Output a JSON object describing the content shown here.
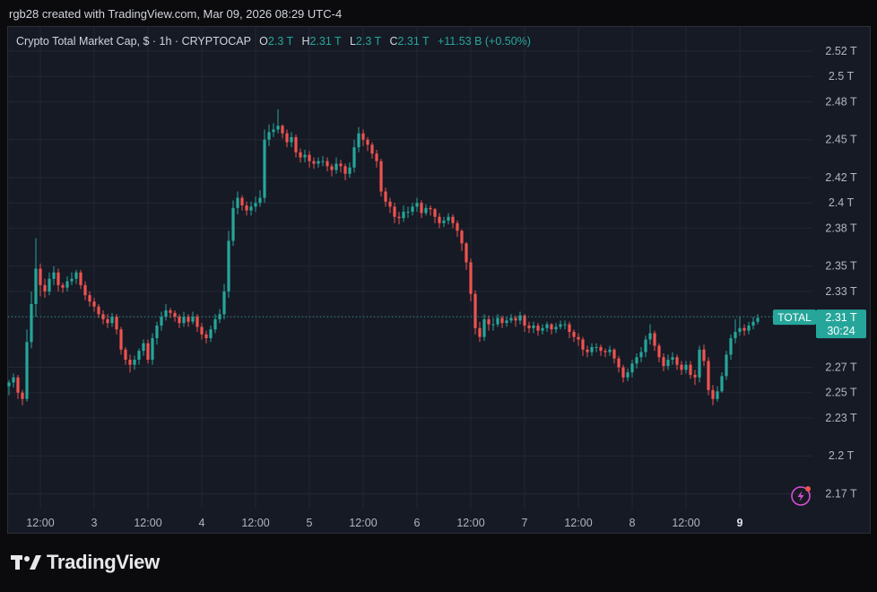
{
  "header": {
    "text": "rgb28 created with TradingView.com, Mar 09, 2026 08:29 UTC-4"
  },
  "legend": {
    "symbol": "Crypto Total Market Cap, $ · 1h · CRYPTOCAP",
    "o_label": "O",
    "o_value": "2.3 T",
    "h_label": "H",
    "h_value": "2.31 T",
    "l_label": "L",
    "l_value": "2.3 T",
    "c_label": "C",
    "c_value": "2.31 T",
    "change": "+11.53 B (+0.50%)"
  },
  "price_tag": {
    "symbol": "TOTAL",
    "price": "2.31 T",
    "countdown": "30:24"
  },
  "colors": {
    "up": "#26a69a",
    "down": "#ef5350",
    "background": "#161a25",
    "grid": "#232735",
    "text": "#b2b5be",
    "lightning": "#d64fd0"
  },
  "icons": {
    "lightning": "lightning-icon",
    "logo": "tradingview-logo-icon"
  },
  "footer": {
    "brand": "TradingView"
  },
  "chart_data": {
    "type": "candlestick",
    "title": "Crypto Total Market Cap, $ · 1h · CRYPTOCAP",
    "y_unit": "T (trillion USD)",
    "ylim": [
      2.155,
      2.535
    ],
    "y_ticks": [
      2.52,
      2.5,
      2.48,
      2.45,
      2.42,
      2.4,
      2.38,
      2.35,
      2.33,
      2.31,
      2.27,
      2.25,
      2.23,
      2.2,
      2.17
    ],
    "y_tick_labels": [
      "2.52 T",
      "2.5 T",
      "2.48 T",
      "2.45 T",
      "2.42 T",
      "2.4 T",
      "2.38 T",
      "2.35 T",
      "2.33 T",
      "2.31 T",
      "2.27 T",
      "2.25 T",
      "2.23 T",
      "2.2 T",
      "2.17 T"
    ],
    "x_ticks": [
      "12:00",
      "3",
      "12:00",
      "4",
      "12:00",
      "5",
      "12:00",
      "6",
      "12:00",
      "7",
      "12:00",
      "8",
      "12:00",
      "9"
    ],
    "x_tick_index": [
      7,
      19,
      31,
      43,
      55,
      67,
      79,
      91,
      103,
      115,
      127,
      139,
      151,
      163
    ],
    "bold_x_ticks": [
      "9"
    ],
    "current_price": 2.31,
    "grid": true,
    "close": [
      2.258,
      2.262,
      2.25,
      2.245,
      2.29,
      2.32,
      2.348,
      2.335,
      2.33,
      2.34,
      2.345,
      2.335,
      2.333,
      2.338,
      2.34,
      2.345,
      2.335,
      2.327,
      2.322,
      2.318,
      2.312,
      2.308,
      2.305,
      2.31,
      2.3,
      2.284,
      2.276,
      2.272,
      2.276,
      2.283,
      2.289,
      2.276,
      2.293,
      2.303,
      2.31,
      2.315,
      2.313,
      2.31,
      2.305,
      2.31,
      2.306,
      2.31,
      2.302,
      2.296,
      2.293,
      2.3,
      2.308,
      2.312,
      2.33,
      2.37,
      2.396,
      2.404,
      2.398,
      2.394,
      2.397,
      2.4,
      2.404,
      2.45,
      2.456,
      2.458,
      2.461,
      2.455,
      2.448,
      2.452,
      2.44,
      2.436,
      2.438,
      2.433,
      2.431,
      2.433,
      2.433,
      2.429,
      2.426,
      2.431,
      2.429,
      2.423,
      2.428,
      2.444,
      2.455,
      2.45,
      2.446,
      2.439,
      2.433,
      2.409,
      2.401,
      2.397,
      2.389,
      2.388,
      2.393,
      2.393,
      2.397,
      2.4,
      2.392,
      2.396,
      2.395,
      2.389,
      2.384,
      2.386,
      2.389,
      2.384,
      2.378,
      2.368,
      2.353,
      2.328,
      2.301,
      2.294,
      2.308,
      2.304,
      2.304,
      2.309,
      2.305,
      2.307,
      2.309,
      2.307,
      2.311,
      2.303,
      2.301,
      2.303,
      2.299,
      2.301,
      2.304,
      2.3,
      2.302,
      2.304,
      2.304,
      2.298,
      2.294,
      2.292,
      2.284,
      2.282,
      2.286,
      2.286,
      2.283,
      2.282,
      2.284,
      2.277,
      2.27,
      2.262,
      2.266,
      2.273,
      2.278,
      2.282,
      2.292,
      2.297,
      2.287,
      2.278,
      2.271,
      2.276,
      2.278,
      2.272,
      2.268,
      2.272,
      2.264,
      2.262,
      2.284,
      2.275,
      2.252,
      2.245,
      2.251,
      2.263,
      2.28,
      2.293,
      2.298,
      2.301,
      2.299,
      2.303,
      2.306,
      2.309
    ],
    "open": [
      2.255,
      2.258,
      2.262,
      2.25,
      2.245,
      2.29,
      2.32,
      2.348,
      2.335,
      2.33,
      2.34,
      2.345,
      2.335,
      2.333,
      2.338,
      2.34,
      2.345,
      2.335,
      2.327,
      2.322,
      2.318,
      2.312,
      2.308,
      2.305,
      2.31,
      2.3,
      2.284,
      2.276,
      2.272,
      2.276,
      2.283,
      2.289,
      2.276,
      2.293,
      2.303,
      2.31,
      2.315,
      2.313,
      2.31,
      2.305,
      2.31,
      2.306,
      2.31,
      2.302,
      2.296,
      2.293,
      2.3,
      2.308,
      2.312,
      2.33,
      2.37,
      2.396,
      2.404,
      2.398,
      2.394,
      2.397,
      2.4,
      2.404,
      2.45,
      2.456,
      2.458,
      2.461,
      2.455,
      2.448,
      2.452,
      2.44,
      2.436,
      2.438,
      2.433,
      2.431,
      2.433,
      2.433,
      2.429,
      2.426,
      2.431,
      2.429,
      2.423,
      2.428,
      2.444,
      2.455,
      2.45,
      2.446,
      2.439,
      2.433,
      2.409,
      2.401,
      2.397,
      2.389,
      2.388,
      2.393,
      2.393,
      2.397,
      2.4,
      2.392,
      2.396,
      2.395,
      2.389,
      2.384,
      2.386,
      2.389,
      2.384,
      2.378,
      2.368,
      2.353,
      2.328,
      2.301,
      2.294,
      2.308,
      2.304,
      2.304,
      2.309,
      2.305,
      2.307,
      2.309,
      2.307,
      2.311,
      2.303,
      2.301,
      2.303,
      2.299,
      2.301,
      2.304,
      2.3,
      2.302,
      2.304,
      2.304,
      2.298,
      2.294,
      2.292,
      2.284,
      2.282,
      2.286,
      2.286,
      2.283,
      2.282,
      2.284,
      2.277,
      2.27,
      2.262,
      2.266,
      2.273,
      2.278,
      2.282,
      2.292,
      2.297,
      2.287,
      2.278,
      2.271,
      2.276,
      2.278,
      2.272,
      2.268,
      2.272,
      2.264,
      2.262,
      2.284,
      2.275,
      2.252,
      2.245,
      2.251,
      2.263,
      2.28,
      2.293,
      2.298,
      2.301,
      2.299,
      2.303,
      2.306
    ],
    "high": [
      2.26,
      2.265,
      2.264,
      2.252,
      2.3,
      2.33,
      2.372,
      2.352,
      2.34,
      2.345,
      2.35,
      2.348,
      2.337,
      2.342,
      2.345,
      2.347,
      2.347,
      2.338,
      2.33,
      2.325,
      2.32,
      2.315,
      2.312,
      2.313,
      2.312,
      2.302,
      2.286,
      2.28,
      2.279,
      2.285,
      2.292,
      2.292,
      2.297,
      2.306,
      2.314,
      2.32,
      2.317,
      2.315,
      2.312,
      2.314,
      2.312,
      2.314,
      2.312,
      2.305,
      2.299,
      2.303,
      2.312,
      2.316,
      2.336,
      2.378,
      2.402,
      2.409,
      2.406,
      2.401,
      2.401,
      2.405,
      2.41,
      2.458,
      2.462,
      2.463,
      2.474,
      2.462,
      2.458,
      2.456,
      2.454,
      2.443,
      2.442,
      2.441,
      2.436,
      2.436,
      2.437,
      2.436,
      2.431,
      2.436,
      2.434,
      2.431,
      2.432,
      2.45,
      2.46,
      2.458,
      2.452,
      2.448,
      2.442,
      2.435,
      2.412,
      2.404,
      2.4,
      2.393,
      2.398,
      2.397,
      2.4,
      2.404,
      2.402,
      2.399,
      2.398,
      2.396,
      2.392,
      2.389,
      2.392,
      2.391,
      2.386,
      2.379,
      2.369,
      2.356,
      2.331,
      2.306,
      2.312,
      2.311,
      2.309,
      2.312,
      2.311,
      2.31,
      2.312,
      2.311,
      2.314,
      2.312,
      2.306,
      2.306,
      2.305,
      2.304,
      2.306,
      2.305,
      2.305,
      2.307,
      2.307,
      2.306,
      2.3,
      2.297,
      2.294,
      2.287,
      2.289,
      2.289,
      2.288,
      2.285,
      2.287,
      2.285,
      2.279,
      2.272,
      2.269,
      2.276,
      2.281,
      2.286,
      2.295,
      2.304,
      2.299,
      2.289,
      2.281,
      2.28,
      2.282,
      2.28,
      2.275,
      2.275,
      2.275,
      2.268,
      2.287,
      2.288,
      2.278,
      2.256,
      2.255,
      2.266,
      2.283,
      2.296,
      2.308,
      2.31,
      2.304,
      2.306,
      2.31,
      2.312
    ],
    "low": [
      2.248,
      2.254,
      2.245,
      2.24,
      2.243,
      2.285,
      2.31,
      2.326,
      2.325,
      2.327,
      2.335,
      2.33,
      2.329,
      2.33,
      2.335,
      2.336,
      2.332,
      2.323,
      2.318,
      2.314,
      2.309,
      2.304,
      2.301,
      2.302,
      2.296,
      2.28,
      2.272,
      2.266,
      2.268,
      2.272,
      2.279,
      2.273,
      2.272,
      2.288,
      2.299,
      2.307,
      2.309,
      2.306,
      2.301,
      2.302,
      2.302,
      2.304,
      2.298,
      2.292,
      2.289,
      2.29,
      2.297,
      2.305,
      2.308,
      2.325,
      2.366,
      2.391,
      2.394,
      2.39,
      2.39,
      2.393,
      2.397,
      2.4,
      2.445,
      2.452,
      2.455,
      2.451,
      2.444,
      2.444,
      2.436,
      2.432,
      2.432,
      2.428,
      2.427,
      2.428,
      2.429,
      2.425,
      2.421,
      2.423,
      2.424,
      2.418,
      2.42,
      2.424,
      2.44,
      2.445,
      2.441,
      2.435,
      2.428,
      2.405,
      2.397,
      2.392,
      2.384,
      2.383,
      2.385,
      2.388,
      2.39,
      2.393,
      2.388,
      2.39,
      2.39,
      2.384,
      2.38,
      2.381,
      2.383,
      2.38,
      2.373,
      2.362,
      2.347,
      2.322,
      2.296,
      2.29,
      2.291,
      2.299,
      2.299,
      2.302,
      2.301,
      2.302,
      2.305,
      2.302,
      2.304,
      2.298,
      2.297,
      2.297,
      2.295,
      2.296,
      2.298,
      2.296,
      2.297,
      2.3,
      2.3,
      2.293,
      2.29,
      2.287,
      2.279,
      2.278,
      2.279,
      2.282,
      2.279,
      2.278,
      2.279,
      2.273,
      2.266,
      2.258,
      2.259,
      2.262,
      2.269,
      2.274,
      2.278,
      2.288,
      2.283,
      2.274,
      2.267,
      2.268,
      2.272,
      2.268,
      2.264,
      2.265,
      2.261,
      2.256,
      2.258,
      2.271,
      2.248,
      2.24,
      2.243,
      2.25,
      2.26,
      2.276,
      2.289,
      2.295,
      2.295,
      2.296,
      2.3,
      2.304
    ]
  }
}
